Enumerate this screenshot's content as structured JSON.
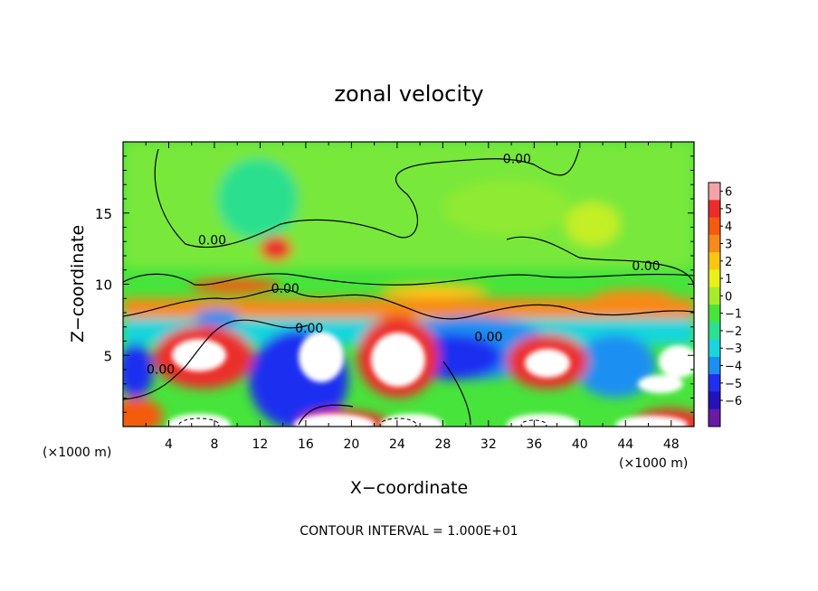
{
  "chart_data": {
    "type": "heatmap",
    "title": "zonal velocity",
    "xlabel": "X−coordinate",
    "ylabel": "Z−coordinate",
    "x_unit_left": "(×1000 m)",
    "x_unit_right": "(×1000 m)",
    "footer": "CONTOUR INTERVAL = 1.000E+01",
    "xlim": [
      0,
      50
    ],
    "ylim": [
      0,
      20
    ],
    "x_ticks": [
      4,
      8,
      12,
      16,
      20,
      24,
      28,
      32,
      36,
      40,
      44,
      48
    ],
    "y_ticks": [
      5,
      10,
      15
    ],
    "colorbar": {
      "levels": [
        6,
        5,
        4,
        3,
        2,
        1,
        0,
        -1,
        -2,
        -3,
        -4,
        -5,
        -6
      ],
      "colors": [
        "#f4a3a6",
        "#ec2d2b",
        "#f55a0f",
        "#f78a18",
        "#f9c712",
        "#e7f11a",
        "#a7ec2a",
        "#47e43b",
        "#2ce08f",
        "#19d6dc",
        "#1b8ff2",
        "#1f2ff0",
        "#2212b8",
        "#6a1aa6"
      ]
    },
    "contour_labels": [
      {
        "text": "0.00",
        "x": 34.5,
        "z": 18.5
      },
      {
        "text": "0.00",
        "x": 7.8,
        "z": 12.8
      },
      {
        "text": "0.00",
        "x": 45.8,
        "z": 11.0
      },
      {
        "text": "0.00",
        "x": 14.2,
        "z": 9.4
      },
      {
        "text": "0.00",
        "x": 16.3,
        "z": 6.6
      },
      {
        "text": "0.00",
        "x": 32.0,
        "z": 6.0
      },
      {
        "text": "0.00",
        "x": 3.3,
        "z": 3.7
      }
    ]
  }
}
